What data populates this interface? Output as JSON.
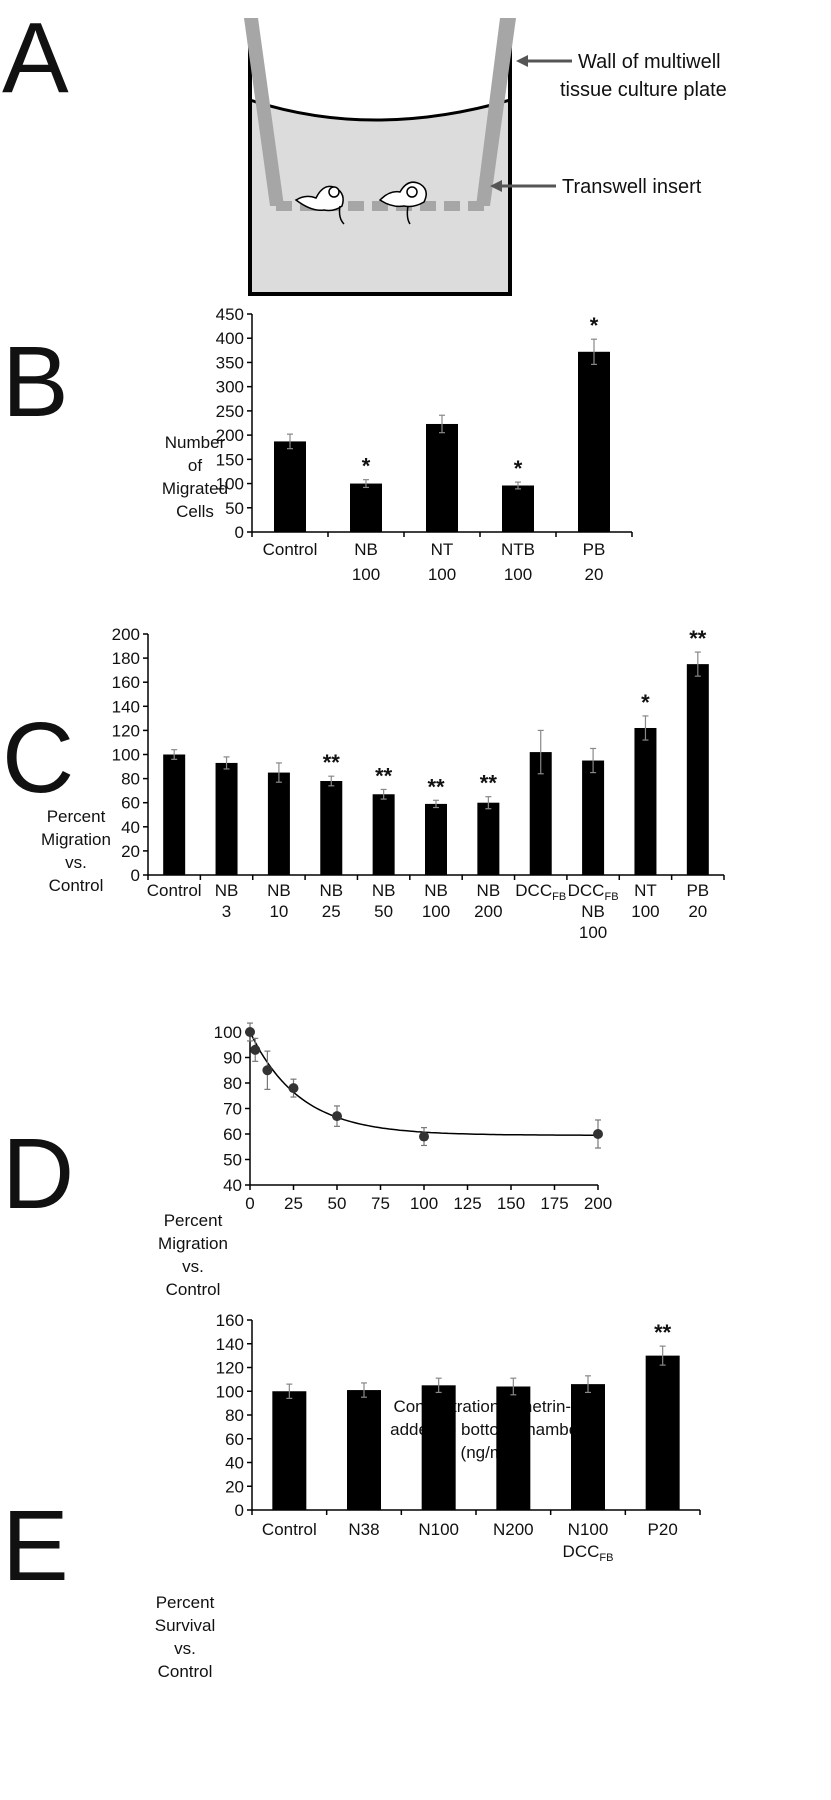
{
  "panel_a": {
    "letter": "A",
    "wall_label_line1": "Wall of multiwell",
    "wall_label_line2": "tissue culture plate",
    "insert_label": "Transwell insert"
  },
  "chart_data": [
    {
      "panel": "B",
      "type": "bar",
      "ylabel_lines": [
        "Number",
        "of",
        "Migrated",
        "Cells"
      ],
      "ylim": [
        0,
        450
      ],
      "yticks": [
        0,
        50,
        100,
        150,
        200,
        250,
        300,
        350,
        400,
        450
      ],
      "categories": [
        [
          "Control"
        ],
        [
          "NB",
          "100"
        ],
        [
          "NT",
          "100"
        ],
        [
          "NTB",
          "100"
        ],
        [
          "PB",
          "20"
        ]
      ],
      "values": [
        187,
        100,
        223,
        96,
        372
      ],
      "errors": [
        15,
        8,
        18,
        7,
        26
      ],
      "significance": [
        "",
        "*",
        "",
        "*",
        "*"
      ],
      "color": "#000000",
      "grid": false
    },
    {
      "panel": "C",
      "type": "bar",
      "ylabel_lines": [
        "Percent",
        "Migration",
        "vs.",
        "Control"
      ],
      "ylim": [
        0,
        200
      ],
      "yticks": [
        0,
        20,
        40,
        60,
        80,
        100,
        120,
        140,
        160,
        180,
        200
      ],
      "categories": [
        [
          "Control"
        ],
        [
          "NB",
          "3"
        ],
        [
          "NB",
          "10"
        ],
        [
          "NB",
          "25"
        ],
        [
          "NB",
          "50"
        ],
        [
          "NB",
          "100"
        ],
        [
          "NB",
          "200"
        ],
        [
          "DCC_FB"
        ],
        [
          "DCC_FB",
          "NB",
          "100"
        ],
        [
          "NT",
          "100"
        ],
        [
          "PB",
          "20"
        ]
      ],
      "values": [
        100,
        93,
        85,
        78,
        67,
        59,
        60,
        102,
        95,
        122,
        175
      ],
      "errors": [
        4,
        5,
        8,
        4,
        4,
        3,
        5,
        18,
        10,
        10,
        10
      ],
      "significance": [
        "",
        "",
        "",
        "**",
        "**",
        "**",
        "**",
        "",
        "",
        "*",
        "**"
      ],
      "color": "#000000",
      "grid": false
    },
    {
      "panel": "D",
      "type": "scatter",
      "ylabel_lines": [
        "Percent",
        "Migration",
        "vs.",
        "Control"
      ],
      "xlabel_lines": [
        "Concentration of netrin-1",
        "added to bottom chamber",
        "(ng/ml)"
      ],
      "xlim": [
        0,
        200
      ],
      "ylim": [
        40,
        100
      ],
      "xticks": [
        0,
        25,
        50,
        75,
        100,
        125,
        150,
        175,
        200
      ],
      "yticks": [
        40,
        50,
        60,
        70,
        80,
        90,
        100
      ],
      "points": {
        "x": [
          0,
          3,
          10,
          25,
          50,
          100,
          200
        ],
        "y": [
          100,
          93,
          85,
          78,
          67,
          59,
          60
        ],
        "errors": [
          3.5,
          4.5,
          7.5,
          3.5,
          4,
          3.5,
          5.5
        ]
      },
      "fit_curve": {
        "type": "exponential decay",
        "plateau": 59.5,
        "span": 40.5,
        "rate": 0.035
      },
      "color": "#333333",
      "grid": false
    },
    {
      "panel": "E",
      "type": "bar",
      "ylabel_lines": [
        "Percent",
        "Survival",
        "vs.",
        "Control"
      ],
      "ylim": [
        0,
        160
      ],
      "yticks": [
        0,
        20,
        40,
        60,
        80,
        100,
        120,
        140,
        160
      ],
      "categories": [
        [
          "Control"
        ],
        [
          "N38"
        ],
        [
          "N100"
        ],
        [
          "N200"
        ],
        [
          "N100",
          "DCC_FB"
        ],
        [
          "P20"
        ]
      ],
      "values": [
        100,
        101,
        105,
        104,
        106,
        130
      ],
      "errors": [
        6,
        6,
        6,
        7,
        7,
        8
      ],
      "significance": [
        "",
        "",
        "",
        "",
        "",
        "**"
      ],
      "color": "#000000",
      "grid": false
    }
  ]
}
